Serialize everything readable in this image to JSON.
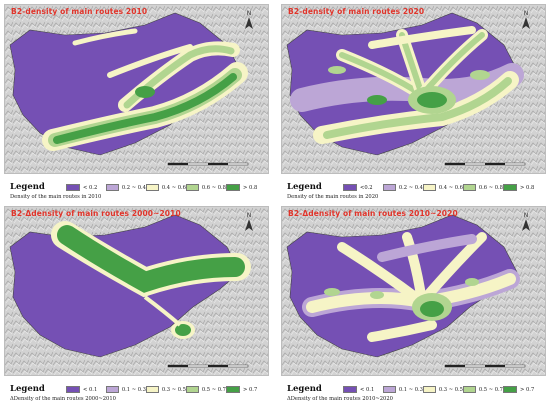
{
  "colors": {
    "hillshade": "#c9c9c9",
    "c1": "#7550b4",
    "c2": "#bca6d6",
    "c3": "#f6f4c6",
    "c4": "#b1d590",
    "c5": "#45a046",
    "title": "#e0342a"
  },
  "panels": [
    {
      "title": "B2-density of main routes 2010",
      "legend_title": "Legend",
      "subtitle": "Density of the main routes  in  2010",
      "legend": [
        "< 0.2",
        "0.2 ~ 0.4",
        "0.4 ~ 0.6",
        "0.6 ~ 0.8",
        "> 0.8"
      ]
    },
    {
      "title": "B2-density of main routes 2020",
      "legend_title": "Legend",
      "subtitle": "Density of the main routes in  2020",
      "legend": [
        "<0.2",
        "0.2 ~ 0.4",
        "0.4 ~ 0.6",
        "0.6 ~ 0.8",
        "> 0.8"
      ]
    },
    {
      "title": "B2-Δdensity of main routes 2000~2010",
      "legend_title": "Legend",
      "subtitle": "ΔDensity of the main routes  2000~2010",
      "legend": [
        "< 0.1",
        "0.1 ~ 0.3",
        "0.3 ~ 0.5",
        "0.5 ~ 0.7",
        "> 0.7"
      ]
    },
    {
      "title": "B2-Δdensity of main routes 2010~2020",
      "legend_title": "Legend",
      "subtitle": "ΔDensity of the main routes  2010~2020",
      "legend": [
        "< 0.1",
        "0.1 ~ 0.3",
        "0.3 ~ 0.5",
        "0.5 ~ 0.7",
        "> 0.7"
      ]
    }
  ],
  "north_label": "N"
}
